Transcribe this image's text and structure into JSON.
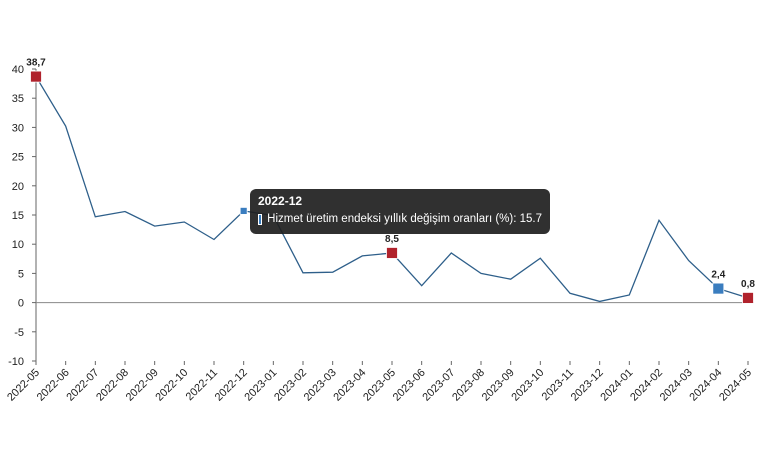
{
  "chart_data": {
    "type": "line",
    "title": "",
    "xlabel": "",
    "ylabel": "",
    "ylim": [
      -10,
      40
    ],
    "yticks": [
      -10,
      -5,
      0,
      5,
      10,
      15,
      20,
      25,
      30,
      35,
      40
    ],
    "grid": false,
    "categories": [
      "2022-05",
      "2022-06",
      "2022-07",
      "2022-08",
      "2022-09",
      "2022-10",
      "2022-11",
      "2022-12",
      "2023-01",
      "2023-02",
      "2023-03",
      "2023-04",
      "2023-05",
      "2023-06",
      "2023-07",
      "2023-08",
      "2023-09",
      "2023-10",
      "2023-11",
      "2023-12",
      "2024-01",
      "2024-02",
      "2024-03",
      "2024-04",
      "2024-05"
    ],
    "series": [
      {
        "name": "Hizmet üretim endeksi yıllık değişim oranları (%)",
        "color": "#2e5f8a",
        "values": [
          38.7,
          30.2,
          14.7,
          15.6,
          13.1,
          13.8,
          10.8,
          15.7,
          14.9,
          5.1,
          5.2,
          8.0,
          8.5,
          2.9,
          8.5,
          5.0,
          4.0,
          7.6,
          1.6,
          0.2,
          1.3,
          14.1,
          7.2,
          2.4,
          0.8
        ]
      }
    ],
    "markers": [
      {
        "category": "2022-05",
        "value": 38.7,
        "label": "38,7",
        "color": "#b0222c",
        "label_pos": "above"
      },
      {
        "category": "2022-12",
        "value": 15.7,
        "label": "",
        "color": "#3a7dbf",
        "label_pos": "above",
        "small": true
      },
      {
        "category": "2023-05",
        "value": 8.5,
        "label": "8,5",
        "color": "#b0222c",
        "label_pos": "above"
      },
      {
        "category": "2024-04",
        "value": 2.4,
        "label": "2,4",
        "color": "#3a7dbf",
        "label_pos": "above"
      },
      {
        "category": "2024-05",
        "value": 0.8,
        "label": "0,8",
        "color": "#b0222c",
        "label_pos": "above"
      }
    ],
    "tooltip": {
      "title": "2022-12",
      "text": "Hizmet üretim endeksi yıllık değişim oranları (%): 15.7",
      "swatch_color": "#3a7dbf"
    }
  }
}
